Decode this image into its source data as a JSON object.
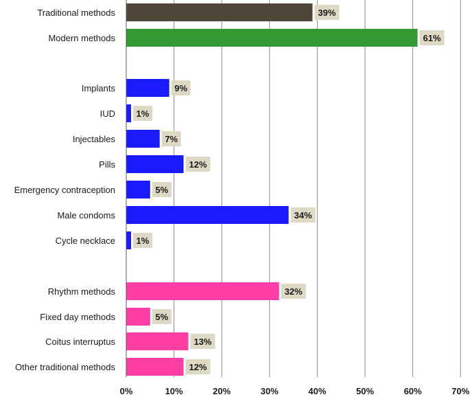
{
  "chart_data": {
    "type": "bar",
    "orientation": "horizontal",
    "title": "",
    "xlabel": "",
    "ylabel": "",
    "xlim": [
      0,
      70
    ],
    "x_ticks": [
      "0%",
      "10%",
      "20%",
      "30%",
      "40%",
      "50%",
      "60%",
      "70%"
    ],
    "grid": "vertical",
    "legend": "none",
    "value_suffix": "%",
    "data_label_background": "#ddd9c4",
    "series": [
      {
        "category": "Traditional methods",
        "value": 39,
        "color": "#4f4638"
      },
      {
        "category": "Modern methods",
        "value": 61,
        "color": "#339933"
      },
      {
        "category": "Implants",
        "value": 9,
        "color": "#1a1aff"
      },
      {
        "category": "IUD",
        "value": 1,
        "color": "#1a1aff"
      },
      {
        "category": "Injectables",
        "value": 7,
        "color": "#1a1aff"
      },
      {
        "category": "Pills",
        "value": 12,
        "color": "#1a1aff"
      },
      {
        "category": "Emergency contraception",
        "value": 5,
        "color": "#1a1aff"
      },
      {
        "category": "Male condoms",
        "value": 34,
        "color": "#1a1aff"
      },
      {
        "category": "Cycle necklace",
        "value": 1,
        "color": "#1a1aff"
      },
      {
        "category": "Rhythm methods",
        "value": 32,
        "color": "#ff3ea5"
      },
      {
        "category": "Fixed day methods",
        "value": 5,
        "color": "#ff3ea5"
      },
      {
        "category": "Coitus interruptus",
        "value": 13,
        "color": "#ff3ea5"
      },
      {
        "category": "Other traditional methods",
        "value": 12,
        "color": "#ff3ea5"
      }
    ]
  }
}
